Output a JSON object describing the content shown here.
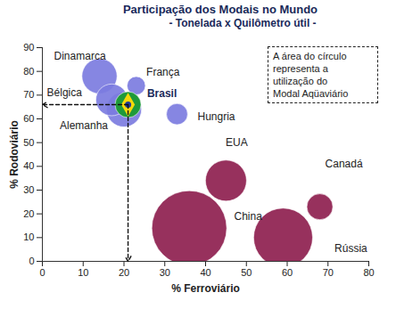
{
  "chart_data": {
    "type": "scatter",
    "title": "Participação dos Modais no Mundo",
    "subtitle": "- Tonelada x Quilômetro útil -",
    "xlabel": "% Ferroviário",
    "ylabel": "% Rodoviário",
    "annotation": [
      "A área do círculo",
      "representa a",
      "utilização do",
      "Modal Aqüaviário"
    ],
    "labels": [
      "Dinamarca",
      "França",
      "Bélgica",
      "Brasil",
      "Alemanha",
      "Hungria",
      "EUA",
      "China",
      "Canadá",
      "Rússia"
    ],
    "x": [
      14,
      23,
      17,
      21,
      20,
      33,
      45,
      36,
      68,
      59
    ],
    "y": [
      78,
      74,
      68,
      66,
      64,
      62,
      34,
      14,
      23,
      10
    ],
    "sizes": [
      11,
      3,
      9,
      6,
      11,
      4,
      15,
      50,
      6,
      31
    ],
    "colors": [
      "#7c7ce0",
      "#7c7ce0",
      "#7c7ce0",
      "#1f9a3a",
      "#7c7ce0",
      "#7c7ce0",
      "#8e1f4f",
      "#8e1f4f",
      "#8e1f4f",
      "#8e1f4f"
    ],
    "xlim": [
      0,
      80
    ],
    "xticks": [
      0,
      10,
      20,
      30,
      40,
      50,
      60,
      70,
      80
    ],
    "ylim": [
      0,
      90
    ],
    "yticks": [
      0,
      10,
      20,
      30,
      40,
      50,
      60,
      70,
      80,
      90
    ],
    "grid": false
  }
}
